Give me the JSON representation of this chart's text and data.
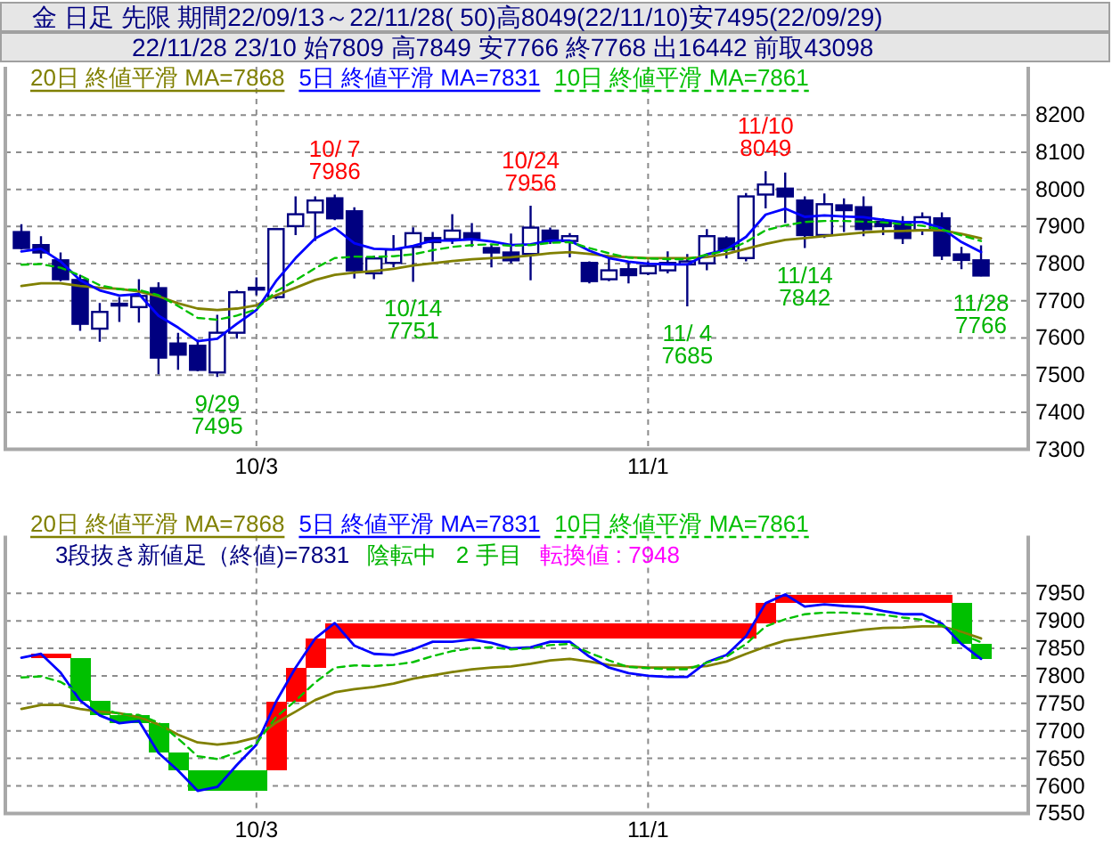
{
  "chart_data": [
    {
      "type": "candlestick",
      "title": "金 日足 先限 期間22/09/13～22/11/28( 50)高8049(22/11/10)安7495(22/09/29)",
      "subtitle": "22/11/28 23/10 始7809 高7849 安7766 終7768 出16442 前取43098",
      "categories": [
        null,
        null,
        null,
        null,
        null,
        null,
        null,
        null,
        null,
        null,
        null,
        null,
        "10/3",
        null,
        null,
        null,
        null,
        null,
        null,
        null,
        null,
        null,
        null,
        null,
        null,
        null,
        null,
        null,
        null,
        null,
        null,
        null,
        "11/1",
        null,
        null,
        null,
        null,
        null,
        null,
        null,
        null,
        null,
        null,
        null,
        null,
        null,
        null,
        null,
        null,
        null
      ],
      "ohlc": [
        [
          7885,
          7906,
          7838,
          7842
        ],
        [
          7850,
          7874,
          7814,
          7830
        ],
        [
          7809,
          7830,
          7753,
          7758
        ],
        [
          7756,
          7770,
          7619,
          7638
        ],
        [
          7625,
          7694,
          7590,
          7670
        ],
        [
          7689,
          7710,
          7643,
          7692
        ],
        [
          7683,
          7758,
          7641,
          7713
        ],
        [
          7734,
          7750,
          7502,
          7547
        ],
        [
          7585,
          7614,
          7514,
          7555
        ],
        [
          7579,
          7595,
          7510,
          7514
        ],
        [
          7507,
          7662,
          7495,
          7614
        ],
        [
          7614,
          7729,
          7598,
          7723
        ],
        [
          7735,
          7763,
          7715,
          7733
        ],
        [
          7710,
          7893,
          7705,
          7893
        ],
        [
          7901,
          7981,
          7877,
          7933
        ],
        [
          7938,
          7981,
          7861,
          7970
        ],
        [
          7976,
          7986,
          7917,
          7922
        ],
        [
          7941,
          7952,
          7760,
          7782
        ],
        [
          7774,
          7822,
          7758,
          7814
        ],
        [
          7802,
          7877,
          7790,
          7838
        ],
        [
          7845,
          7898,
          7751,
          7882
        ],
        [
          7869,
          7885,
          7806,
          7858
        ],
        [
          7866,
          7933,
          7853,
          7889
        ],
        [
          7882,
          7909,
          7845,
          7865
        ],
        [
          7842,
          7853,
          7790,
          7830
        ],
        [
          7830,
          7881,
          7801,
          7809
        ],
        [
          7826,
          7956,
          7755,
          7897
        ],
        [
          7889,
          7897,
          7853,
          7861
        ],
        [
          7861,
          7882,
          7817,
          7874
        ],
        [
          7802,
          7806,
          7747,
          7753
        ],
        [
          7758,
          7814,
          7753,
          7782
        ],
        [
          7785,
          7806,
          7747,
          7769
        ],
        [
          7774,
          7806,
          7769,
          7794
        ],
        [
          7782,
          7833,
          7774,
          7802
        ],
        [
          7798,
          7826,
          7685,
          7806
        ],
        [
          7801,
          7893,
          7782,
          7874
        ],
        [
          7868,
          7874,
          7814,
          7838
        ],
        [
          7815,
          7990,
          7806,
          7981
        ],
        [
          7986,
          8049,
          7949,
          8013
        ],
        [
          8002,
          8045,
          7909,
          7981
        ],
        [
          7970,
          7981,
          7842,
          7877
        ],
        [
          7877,
          7989,
          7869,
          7960
        ],
        [
          7957,
          7976,
          7885,
          7944
        ],
        [
          7952,
          7981,
          7874,
          7893
        ],
        [
          7913,
          7922,
          7877,
          7901
        ],
        [
          7909,
          7928,
          7853,
          7869
        ],
        [
          7890,
          7938,
          7877,
          7925
        ],
        [
          7922,
          7938,
          7810,
          7822
        ],
        [
          7825,
          7845,
          7785,
          7810
        ],
        [
          7809,
          7849,
          7766,
          7768
        ]
      ],
      "color": "#000080",
      "series": [
        {
          "name": "20日 終値平滑 MA=7868",
          "type": "line",
          "color": "#808000",
          "values": [
            7740,
            7747,
            7747,
            7740,
            7735,
            7732,
            7725,
            7712,
            7693,
            7679,
            7675,
            7679,
            7688,
            7715,
            7735,
            7756,
            7770,
            7776,
            7780,
            7786,
            7795,
            7801,
            7807,
            7812,
            7815,
            7817,
            7822,
            7828,
            7831,
            7826,
            7820,
            7817,
            7815,
            7815,
            7815,
            7818,
            7826,
            7840,
            7853,
            7864,
            7869,
            7874,
            7879,
            7884,
            7887,
            7888,
            7890,
            7890,
            7880,
            7868
          ]
        },
        {
          "name": "5日 終値平滑 MA=7831",
          "type": "line",
          "color": "#0000ff",
          "values": [
            7833,
            7840,
            7806,
            7755,
            7728,
            7714,
            7718,
            7660,
            7628,
            7591,
            7598,
            7638,
            7675,
            7753,
            7815,
            7868,
            7896,
            7855,
            7840,
            7838,
            7848,
            7862,
            7862,
            7866,
            7860,
            7850,
            7852,
            7862,
            7862,
            7835,
            7815,
            7805,
            7800,
            7798,
            7798,
            7825,
            7838,
            7872,
            7932,
            7948,
            7926,
            7930,
            7927,
            7925,
            7918,
            7912,
            7912,
            7895,
            7858,
            7831
          ]
        },
        {
          "name": "10日 終値平滑 MA=7861",
          "type": "line",
          "color": "#00c000",
          "line_style": "dashed",
          "values": [
            7797,
            7799,
            7789,
            7768,
            7742,
            7731,
            7729,
            7715,
            7686,
            7654,
            7649,
            7660,
            7677,
            7725,
            7755,
            7788,
            7815,
            7819,
            7818,
            7820,
            7825,
            7836,
            7845,
            7850,
            7852,
            7848,
            7850,
            7856,
            7858,
            7842,
            7828,
            7816,
            7814,
            7812,
            7812,
            7824,
            7835,
            7858,
            7890,
            7903,
            7912,
            7915,
            7915,
            7913,
            7911,
            7906,
            7902,
            7892,
            7876,
            7861
          ]
        }
      ],
      "ylim": [
        7300,
        8330
      ],
      "yticks": [
        7300,
        7400,
        7500,
        7600,
        7700,
        7800,
        7900,
        8000,
        8100,
        8200
      ],
      "grid": true,
      "legend": "top left",
      "annotations": [
        {
          "text": "9/29\n7495",
          "y": 7495
        },
        {
          "text": "10/ 7\n7986",
          "y": 7986
        },
        {
          "text": "10/14\n7751",
          "y": 7751
        },
        {
          "text": "10/24\n7956",
          "y": 7956
        },
        {
          "text": "11/ 4\n7685",
          "y": 7685
        },
        {
          "text": "11/10\n8049",
          "y": 8049
        },
        {
          "text": "11/14\n7842",
          "y": 7842
        },
        {
          "text": "11/28\n7766",
          "y": 7766
        }
      ]
    },
    {
      "type": "bar",
      "categories": [
        null,
        null,
        null,
        null,
        null,
        null,
        null,
        null,
        null,
        null,
        null,
        null,
        "10/3",
        null,
        null,
        null,
        null,
        null,
        null,
        null,
        null,
        null,
        null,
        null,
        null,
        null,
        null,
        null,
        null,
        null,
        null,
        null,
        "11/1",
        null,
        null,
        null,
        null,
        null,
        null,
        null,
        null,
        null,
        null,
        null,
        null,
        null,
        null,
        null,
        null,
        null
      ],
      "series": [
        {
          "type": "bar",
          "base": [
            null,
            7833,
            7833,
            7755,
            7728,
            7714,
            7714,
            7660,
            7628,
            7591,
            7591,
            7591,
            7591,
            7628,
            7753,
            7815,
            7868,
            7868,
            7868,
            7868,
            7868,
            7868,
            7868,
            7868,
            7868,
            7868,
            7868,
            7868,
            7868,
            7868,
            7868,
            7868,
            7868,
            7868,
            7868,
            7868,
            7868,
            7868,
            7896,
            7932,
            7932,
            7932,
            7932,
            7932,
            7932,
            7932,
            7932,
            7932,
            7858,
            7831
          ],
          "values": [
            null,
            7,
            7,
            78,
            27,
            14,
            14,
            54,
            32,
            37,
            37,
            37,
            37,
            125,
            62,
            53,
            28,
            28,
            28,
            28,
            28,
            28,
            28,
            28,
            28,
            28,
            28,
            28,
            28,
            28,
            28,
            28,
            28,
            28,
            28,
            28,
            28,
            28,
            36,
            16,
            16,
            16,
            16,
            16,
            16,
            16,
            16,
            16,
            74,
            27
          ],
          "colors": [
            null,
            "#ff0000",
            "#ff0000",
            "#00c000",
            "#00c000",
            "#00c000",
            "#00c000",
            "#00c000",
            "#00c000",
            "#00c000",
            "#00c000",
            "#00c000",
            "#00c000",
            "#ff0000",
            "#ff0000",
            "#ff0000",
            "#ff0000",
            "#ff0000",
            "#ff0000",
            "#ff0000",
            "#ff0000",
            "#ff0000",
            "#ff0000",
            "#ff0000",
            "#ff0000",
            "#ff0000",
            "#ff0000",
            "#ff0000",
            "#ff0000",
            "#ff0000",
            "#ff0000",
            "#ff0000",
            "#ff0000",
            "#ff0000",
            "#ff0000",
            "#ff0000",
            "#ff0000",
            "#ff0000",
            "#ff0000",
            "#ff0000",
            "#ff0000",
            "#ff0000",
            "#ff0000",
            "#ff0000",
            "#ff0000",
            "#ff0000",
            "#ff0000",
            "#ff0000",
            "#00c000",
            "#00c000"
          ]
        },
        {
          "name": "20日 終値平滑 MA=7868",
          "type": "line",
          "color": "#808000",
          "values": [
            7740,
            7747,
            7747,
            7740,
            7735,
            7732,
            7725,
            7712,
            7693,
            7679,
            7675,
            7679,
            7688,
            7715,
            7735,
            7756,
            7770,
            7776,
            7780,
            7786,
            7795,
            7801,
            7807,
            7812,
            7815,
            7817,
            7822,
            7828,
            7831,
            7826,
            7820,
            7817,
            7815,
            7815,
            7815,
            7818,
            7826,
            7840,
            7853,
            7864,
            7869,
            7874,
            7879,
            7884,
            7887,
            7888,
            7890,
            7890,
            7880,
            7868
          ]
        },
        {
          "name": "5日 終値平滑 MA=7831",
          "type": "line",
          "color": "#0000ff",
          "values": [
            7833,
            7840,
            7806,
            7755,
            7728,
            7714,
            7718,
            7660,
            7628,
            7591,
            7598,
            7638,
            7675,
            7753,
            7815,
            7868,
            7896,
            7855,
            7840,
            7838,
            7848,
            7862,
            7862,
            7866,
            7860,
            7850,
            7852,
            7862,
            7862,
            7835,
            7815,
            7805,
            7800,
            7798,
            7798,
            7825,
            7838,
            7872,
            7932,
            7948,
            7926,
            7930,
            7927,
            7925,
            7918,
            7912,
            7912,
            7895,
            7858,
            7831
          ]
        },
        {
          "name": "10日 終値平滑 MA=7861",
          "type": "line",
          "color": "#00c000",
          "line_style": "dashed",
          "values": [
            7797,
            7799,
            7789,
            7768,
            7742,
            7731,
            7729,
            7715,
            7686,
            7654,
            7649,
            7660,
            7677,
            7725,
            7755,
            7788,
            7815,
            7819,
            7818,
            7820,
            7825,
            7836,
            7845,
            7850,
            7852,
            7848,
            7850,
            7856,
            7858,
            7842,
            7828,
            7816,
            7814,
            7812,
            7812,
            7824,
            7835,
            7858,
            7890,
            7903,
            7912,
            7915,
            7915,
            7913,
            7911,
            7906,
            7902,
            7892,
            7876,
            7861
          ]
        }
      ],
      "ylim": [
        7550,
        8055
      ],
      "yticks": [
        7550,
        7600,
        7650,
        7700,
        7750,
        7800,
        7850,
        7900,
        7950
      ],
      "grid": true,
      "legend": "top left",
      "annotations": [
        "3段抜き新値足（終値)=7831",
        "陰転中   2 手目",
        "転換値 : 7948"
      ]
    }
  ]
}
